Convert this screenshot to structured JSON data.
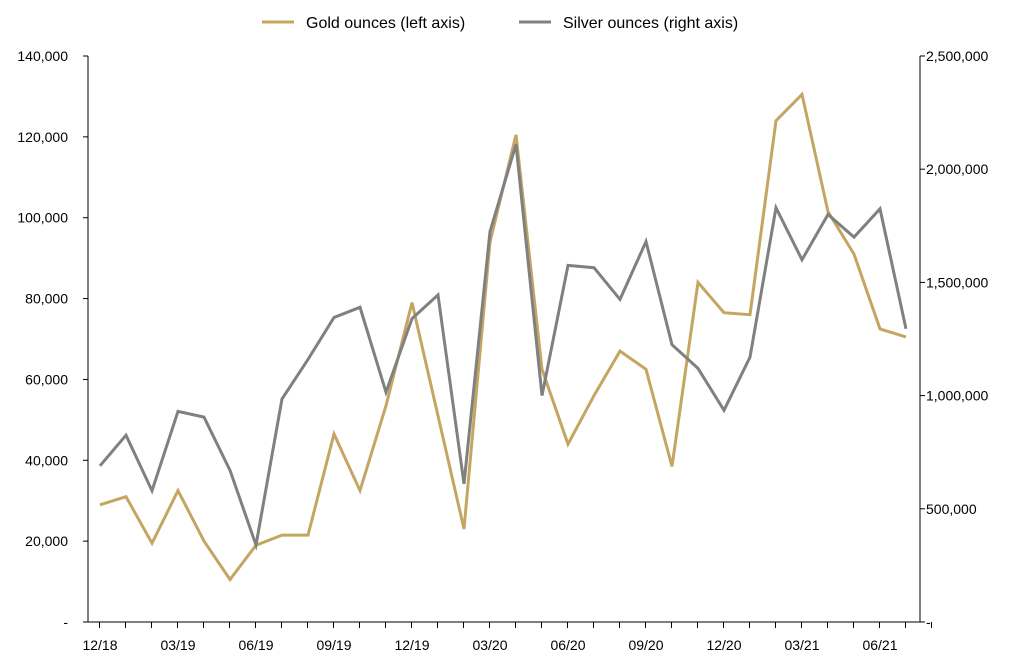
{
  "chart_data": {
    "type": "line",
    "title": "",
    "xlabel": "",
    "ylabel": "",
    "x": [
      "12/18",
      "01/19",
      "02/19",
      "03/19",
      "04/19",
      "05/19",
      "06/19",
      "07/19",
      "08/19",
      "09/19",
      "10/19",
      "11/19",
      "12/19",
      "01/20",
      "02/20",
      "03/20",
      "04/20",
      "05/20",
      "06/20",
      "07/20",
      "08/20",
      "09/20",
      "10/20",
      "11/20",
      "12/20",
      "01/21",
      "02/21",
      "03/21",
      "04/21",
      "05/21",
      "06/21",
      "07/21"
    ],
    "x_tick_labels": [
      "12/18",
      "03/19",
      "06/19",
      "09/19",
      "12/19",
      "03/20",
      "06/20",
      "09/20",
      "12/20",
      "03/21",
      "06/21"
    ],
    "ylim_left": [
      0,
      140000
    ],
    "ylim_right": [
      0,
      2500000
    ],
    "left_tick_labels": [
      "-",
      "20,000",
      "40,000",
      "60,000",
      "80,000",
      "100,000",
      "120,000",
      "140,000"
    ],
    "right_tick_labels": [
      "-",
      "500,000",
      "1,000,000",
      "1,500,000",
      "2,000,000",
      "2,500,000"
    ],
    "grid": false,
    "legend_position": "top",
    "series": [
      {
        "name": "Gold ounces (left axis)",
        "axis": "left",
        "color": "#c4a662",
        "values": [
          29000,
          31000,
          19500,
          32500,
          20000,
          10500,
          19000,
          21500,
          21500,
          46500,
          32500,
          53500,
          79000,
          51000,
          23000,
          94000,
          120500,
          62500,
          44000,
          56000,
          67000,
          62500,
          38500,
          84000,
          76500,
          76000,
          124000,
          130500,
          101500,
          91000,
          72500,
          70500
        ]
      },
      {
        "name": "Silver ounces (right axis)",
        "axis": "right",
        "color": "#808080",
        "values": [
          690000,
          825000,
          580000,
          930000,
          905000,
          670000,
          340000,
          985000,
          1160000,
          1345000,
          1390000,
          1015000,
          1340000,
          1445000,
          610000,
          1725000,
          2110000,
          1000000,
          1575000,
          1565000,
          1425000,
          1680000,
          1225000,
          1120000,
          935000,
          1170000,
          1830000,
          1600000,
          1800000,
          1700000,
          1825000,
          1295000
        ]
      }
    ]
  }
}
